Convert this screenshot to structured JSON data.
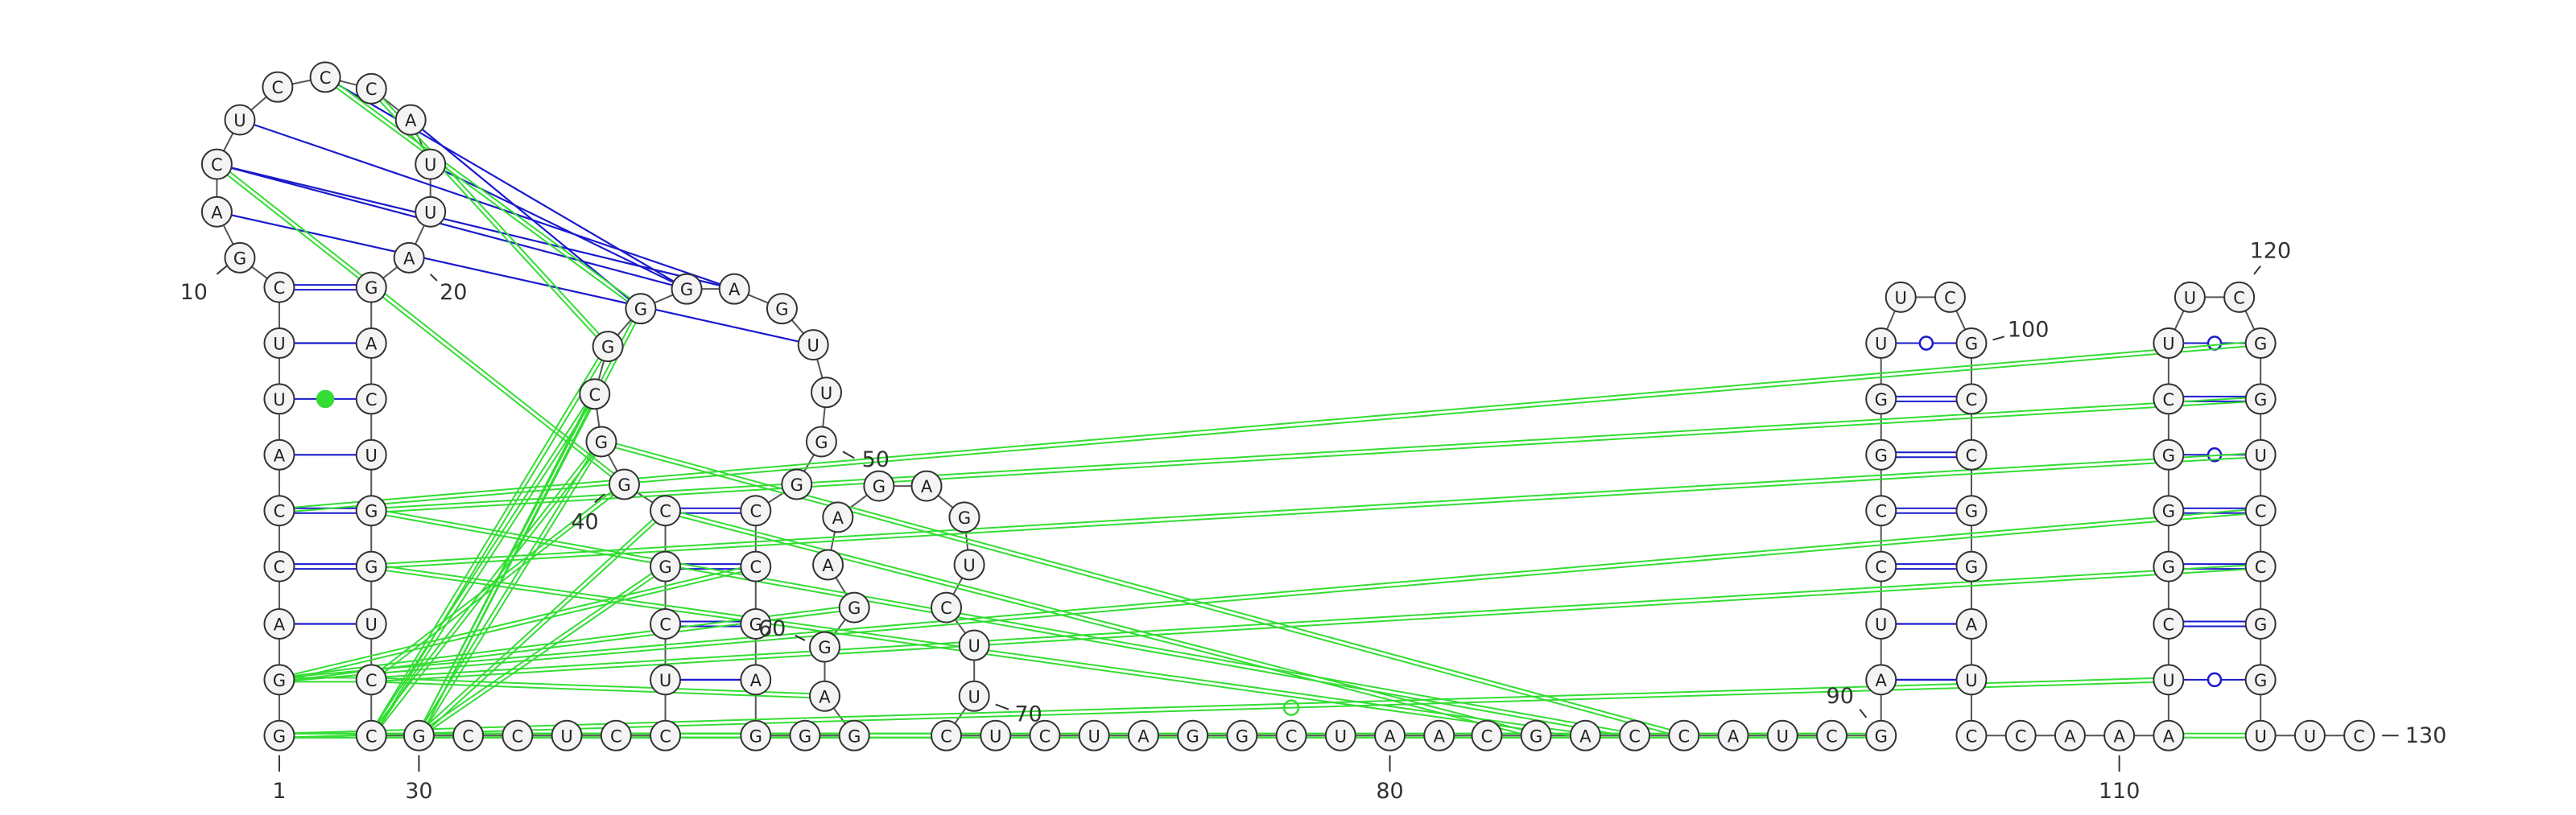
{
  "nodes": [
    "G",
    "G",
    "A",
    "C",
    "C",
    "A",
    "U",
    "U",
    "C",
    "G",
    "A",
    "C",
    "U",
    "C",
    "C",
    "C",
    "A",
    "U",
    "U",
    "A",
    "G",
    "A",
    "C",
    "U",
    "G",
    "G",
    "U",
    "C",
    "C",
    "G",
    "C",
    "C",
    "U",
    "C",
    "C",
    "U",
    "C",
    "G",
    "C",
    "G",
    "G",
    "C",
    "G",
    "G",
    "G",
    "A",
    "G",
    "U",
    "U",
    "G",
    "G",
    "C",
    "C",
    "G",
    "A",
    "G",
    "G",
    "G",
    "A",
    "G",
    "G",
    "A",
    "A",
    "G",
    "A",
    "G",
    "U",
    "C",
    "U",
    "U",
    "C",
    "U",
    "C",
    "U",
    "A",
    "G",
    "G",
    "C",
    "U",
    "A",
    "A",
    "C",
    "G",
    "A",
    "C",
    "C",
    "A",
    "U",
    "C",
    "G",
    "A",
    "U",
    "C",
    "C",
    "G",
    "G",
    "U",
    "U",
    "C",
    "G",
    "C",
    "C",
    "G",
    "G",
    "A",
    "U",
    "C",
    "C",
    "A",
    "A",
    "A",
    "U",
    "C",
    "G",
    "G",
    "G",
    "C",
    "U",
    "U",
    "C",
    "G",
    "G",
    "U",
    "C",
    "C",
    "G",
    "G",
    "U",
    "U",
    "C"
  ],
  "numbering": [
    1,
    10,
    20,
    30,
    40,
    50,
    60,
    70,
    80,
    90,
    100,
    110,
    120,
    130
  ]
}
